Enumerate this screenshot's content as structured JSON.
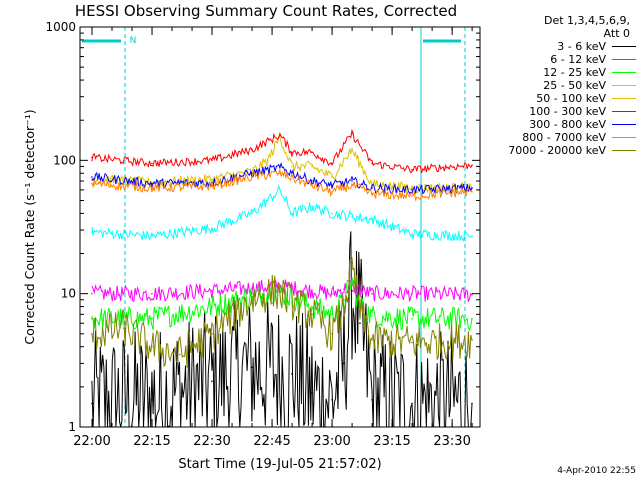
{
  "chart_data": {
    "type": "line",
    "title": "HESSI Observing Summary Count Rates, Corrected",
    "xlabel": "Start Time (19-Jul-05 21:57:02)",
    "ylabel": "Corrected Count Rate (s⁻¹ detector⁻¹)",
    "yscale": "log",
    "ylim": [
      1,
      1000
    ],
    "xlim": [
      "21:57:02",
      "23:37:00"
    ],
    "x_tick_labels": [
      "22:00",
      "22:15",
      "22:30",
      "22:45",
      "23:00",
      "23:15",
      "23:30"
    ],
    "x_tick_minutes": [
      180,
      1080,
      1980,
      2880,
      3780,
      4680,
      5580
    ],
    "y_tick_labels": [
      "1",
      "10",
      "100",
      "1000"
    ],
    "y_tick_values": [
      1,
      10,
      100,
      1000
    ],
    "legend_header": [
      "Det 1,3,4,5,6,9,",
      "Att 0"
    ],
    "legend_position": "right",
    "annotations": [
      {
        "text": "N"
      }
    ],
    "series": [
      {
        "name": "3 - 6 keV",
        "color": "#000000",
        "x": [
          "22:00",
          "22:15",
          "22:30",
          "22:40",
          "22:50",
          "22:55",
          "23:00",
          "23:03",
          "23:05",
          "23:07",
          "23:10",
          "23:20",
          "23:35"
        ],
        "y": [
          1.5,
          1.6,
          2.2,
          2.8,
          2.5,
          1.8,
          1.6,
          3.0,
          10.5,
          6.0,
          1.6,
          1.5,
          1.5
        ]
      },
      {
        "name": "6 - 12 keV",
        "color": "#ff00ff",
        "x": [
          "22:00",
          "22:15",
          "22:30",
          "22:40",
          "22:46",
          "22:55",
          "23:00",
          "23:03",
          "23:05",
          "23:07",
          "23:10",
          "23:20",
          "23:35"
        ],
        "y": [
          10.0,
          10.0,
          10.5,
          11.0,
          11.5,
          10.5,
          10.0,
          10.8,
          11.5,
          10.5,
          10.0,
          10.0,
          9.8
        ]
      },
      {
        "name": "12 - 25 keV",
        "color": "#00ff00",
        "x": [
          "22:00",
          "22:15",
          "22:30",
          "22:40",
          "22:46",
          "22:55",
          "23:00",
          "23:03",
          "23:05",
          "23:07",
          "23:10",
          "23:20",
          "23:35"
        ],
        "y": [
          6.5,
          6.5,
          8.0,
          9.5,
          10.5,
          8.0,
          7.0,
          9.0,
          12.5,
          8.0,
          6.8,
          6.5,
          6.5
        ]
      },
      {
        "name": "25 - 50 keV",
        "color": "#00ffff",
        "x": [
          "22:00",
          "22:15",
          "22:30",
          "22:40",
          "22:47",
          "22:50",
          "22:55",
          "23:00",
          "23:05",
          "23:10",
          "23:20",
          "23:35"
        ],
        "y": [
          29,
          27,
          31,
          40,
          60,
          40,
          45,
          40,
          38,
          36,
          28,
          27
        ]
      },
      {
        "name": "50 - 100 keV",
        "color": "#e0c000",
        "x": [
          "22:00",
          "22:15",
          "22:30",
          "22:40",
          "22:44",
          "22:47",
          "22:50",
          "22:55",
          "23:00",
          "23:05",
          "23:10",
          "23:20",
          "23:35"
        ],
        "y": [
          72,
          68,
          72,
          82,
          100,
          150,
          90,
          90,
          75,
          120,
          66,
          62,
          62
        ]
      },
      {
        "name": "100 - 300 keV",
        "color": "#ff0000",
        "x": [
          "22:00",
          "22:15",
          "22:30",
          "22:40",
          "22:47",
          "22:50",
          "22:55",
          "23:00",
          "23:05",
          "23:10",
          "23:20",
          "23:35"
        ],
        "y": [
          105,
          95,
          100,
          120,
          155,
          115,
          115,
          95,
          158,
          95,
          85,
          92
        ]
      },
      {
        "name": "300 - 800 keV",
        "color": "#0000ff",
        "x": [
          "22:00",
          "22:15",
          "22:30",
          "22:40",
          "22:47",
          "22:55",
          "23:00",
          "23:05",
          "23:10",
          "23:20",
          "23:35"
        ],
        "y": [
          75,
          67,
          68,
          80,
          88,
          70,
          65,
          70,
          62,
          60,
          62
        ]
      },
      {
        "name": "800 - 7000 keV",
        "color": "#ff8000",
        "x": [
          "22:00",
          "22:15",
          "22:30",
          "22:40",
          "22:47",
          "22:55",
          "23:00",
          "23:05",
          "23:10",
          "23:20",
          "23:35"
        ],
        "y": [
          67,
          62,
          64,
          75,
          80,
          65,
          58,
          65,
          56,
          54,
          58
        ]
      },
      {
        "name": "7000 - 20000 keV",
        "color": "#808000",
        "x": [
          "22:00",
          "22:08",
          "22:15",
          "22:22",
          "22:30",
          "22:40",
          "22:46",
          "22:55",
          "23:00",
          "23:03",
          "23:05",
          "23:07",
          "23:10",
          "23:20",
          "23:35"
        ],
        "y": [
          5.0,
          5.5,
          4.0,
          3.5,
          5.0,
          9.0,
          10.5,
          7.0,
          5.0,
          8.0,
          15.5,
          7.5,
          4.5,
          4.3,
          4.5
        ]
      }
    ]
  },
  "stamp": "4-Apr-2010 22:55"
}
